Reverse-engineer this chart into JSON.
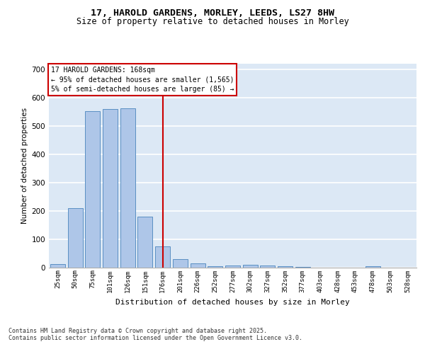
{
  "title_line1": "17, HAROLD GARDENS, MORLEY, LEEDS, LS27 8HW",
  "title_line2": "Size of property relative to detached houses in Morley",
  "xlabel": "Distribution of detached houses by size in Morley",
  "ylabel": "Number of detached properties",
  "categories": [
    "25sqm",
    "50sqm",
    "75sqm",
    "101sqm",
    "126sqm",
    "151sqm",
    "176sqm",
    "201sqm",
    "226sqm",
    "252sqm",
    "277sqm",
    "302sqm",
    "327sqm",
    "352sqm",
    "377sqm",
    "403sqm",
    "428sqm",
    "453sqm",
    "478sqm",
    "503sqm",
    "528sqm"
  ],
  "values": [
    12,
    210,
    553,
    560,
    563,
    180,
    75,
    28,
    13,
    5,
    7,
    8,
    6,
    3,
    1,
    0,
    0,
    0,
    4,
    0,
    0
  ],
  "bar_color": "#aec6e8",
  "bar_edge_color": "#5a8fc3",
  "vline_x": 6,
  "vline_color": "#cc0000",
  "ylim": [
    0,
    720
  ],
  "yticks": [
    0,
    100,
    200,
    300,
    400,
    500,
    600,
    700
  ],
  "annotation_text": "17 HAROLD GARDENS: 168sqm\n← 95% of detached houses are smaller (1,565)\n5% of semi-detached houses are larger (85) →",
  "annotation_box_color": "#cc0000",
  "footer_text": "Contains HM Land Registry data © Crown copyright and database right 2025.\nContains public sector information licensed under the Open Government Licence v3.0.",
  "bg_color": "#ffffff",
  "plot_bg_color": "#dce8f5",
  "grid_color": "#ffffff"
}
